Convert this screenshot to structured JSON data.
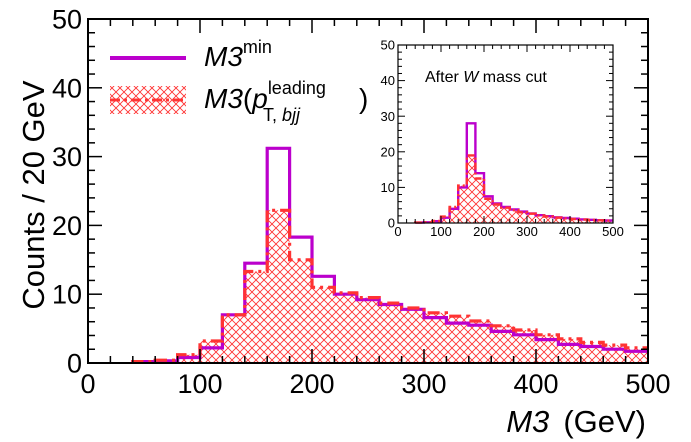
{
  "chart_data": [
    {
      "type": "histogram",
      "panel": "main",
      "ylabel": "Counts / 20 GeV",
      "xlabel_var": "M3",
      "xlabel_unit": "(GeV)",
      "xlim": [
        0,
        500
      ],
      "ylim": [
        0,
        50
      ],
      "x_ticks": [
        "0",
        "100",
        "200",
        "300",
        "400",
        "500"
      ],
      "y_ticks": [
        "0",
        "10",
        "20",
        "30",
        "40",
        "50"
      ],
      "bin_edges": [
        40,
        60,
        80,
        100,
        120,
        140,
        160,
        180,
        200,
        220,
        240,
        260,
        280,
        300,
        320,
        340,
        360,
        380,
        400,
        420,
        440,
        460,
        480,
        500
      ],
      "legend": [
        {
          "var": "M3",
          "sup": "min"
        },
        {
          "var": "M3",
          "open": "(",
          "p": "p",
          "sub": "T, ",
          "sub_italic": "bjj",
          "sup": "leading",
          "close": ")"
        }
      ],
      "series": [
        {
          "name": "M3min",
          "color": "#BB00CC",
          "style": "solid",
          "values": [
            0.2,
            0.3,
            0.8,
            2.2,
            7.0,
            14.5,
            31.2,
            18.3,
            12.6,
            10.0,
            9.2,
            8.5,
            7.8,
            6.6,
            5.8,
            5.5,
            4.6,
            4.1,
            3.4,
            2.7,
            2.4,
            2.0,
            1.7
          ]
        },
        {
          "name": "M3(pT,bjj leading)",
          "color": "#FF3333",
          "style": "dashdot",
          "fill": "hatched",
          "values": [
            0.2,
            0.4,
            1.2,
            3.2,
            7.0,
            13.3,
            22.2,
            15.0,
            11.0,
            10.2,
            9.5,
            8.7,
            8.0,
            7.3,
            6.8,
            6.1,
            5.4,
            4.8,
            4.1,
            3.5,
            3.0,
            2.6,
            2.2
          ]
        }
      ]
    },
    {
      "type": "histogram",
      "panel": "inset",
      "title_pre": "After ",
      "title_var": "W",
      "title_post": " mass cut",
      "xlim": [
        0,
        500
      ],
      "ylim": [
        0,
        50
      ],
      "x_ticks": [
        "0",
        "100",
        "200",
        "300",
        "400",
        "500"
      ],
      "y_ticks": [
        "0",
        "10",
        "20",
        "30",
        "40",
        "50"
      ],
      "bin_edges": [
        40,
        60,
        80,
        100,
        120,
        140,
        160,
        180,
        200,
        220,
        240,
        260,
        280,
        300,
        320,
        340,
        360,
        380,
        400,
        420,
        440,
        460,
        480,
        500
      ],
      "series": [
        {
          "name": "M3min",
          "color": "#BB00CC",
          "style": "solid",
          "values": [
            0.1,
            0.2,
            0.5,
            1.5,
            4.0,
            10.0,
            28.0,
            14.0,
            7.5,
            5.5,
            4.5,
            3.8,
            3.2,
            2.7,
            2.2,
            1.9,
            1.6,
            1.4,
            1.2,
            1.0,
            0.9,
            0.8,
            0.7
          ]
        },
        {
          "name": "M3(pT,bjj leading)",
          "color": "#FF3333",
          "style": "dashdot",
          "fill": "hatched",
          "values": [
            0.1,
            0.2,
            0.6,
            1.8,
            4.5,
            10.5,
            19.0,
            12.5,
            6.8,
            5.2,
            4.3,
            3.6,
            3.0,
            2.6,
            2.1,
            1.8,
            1.5,
            1.3,
            1.1,
            0.95,
            0.85,
            0.75,
            0.65
          ]
        }
      ]
    }
  ]
}
